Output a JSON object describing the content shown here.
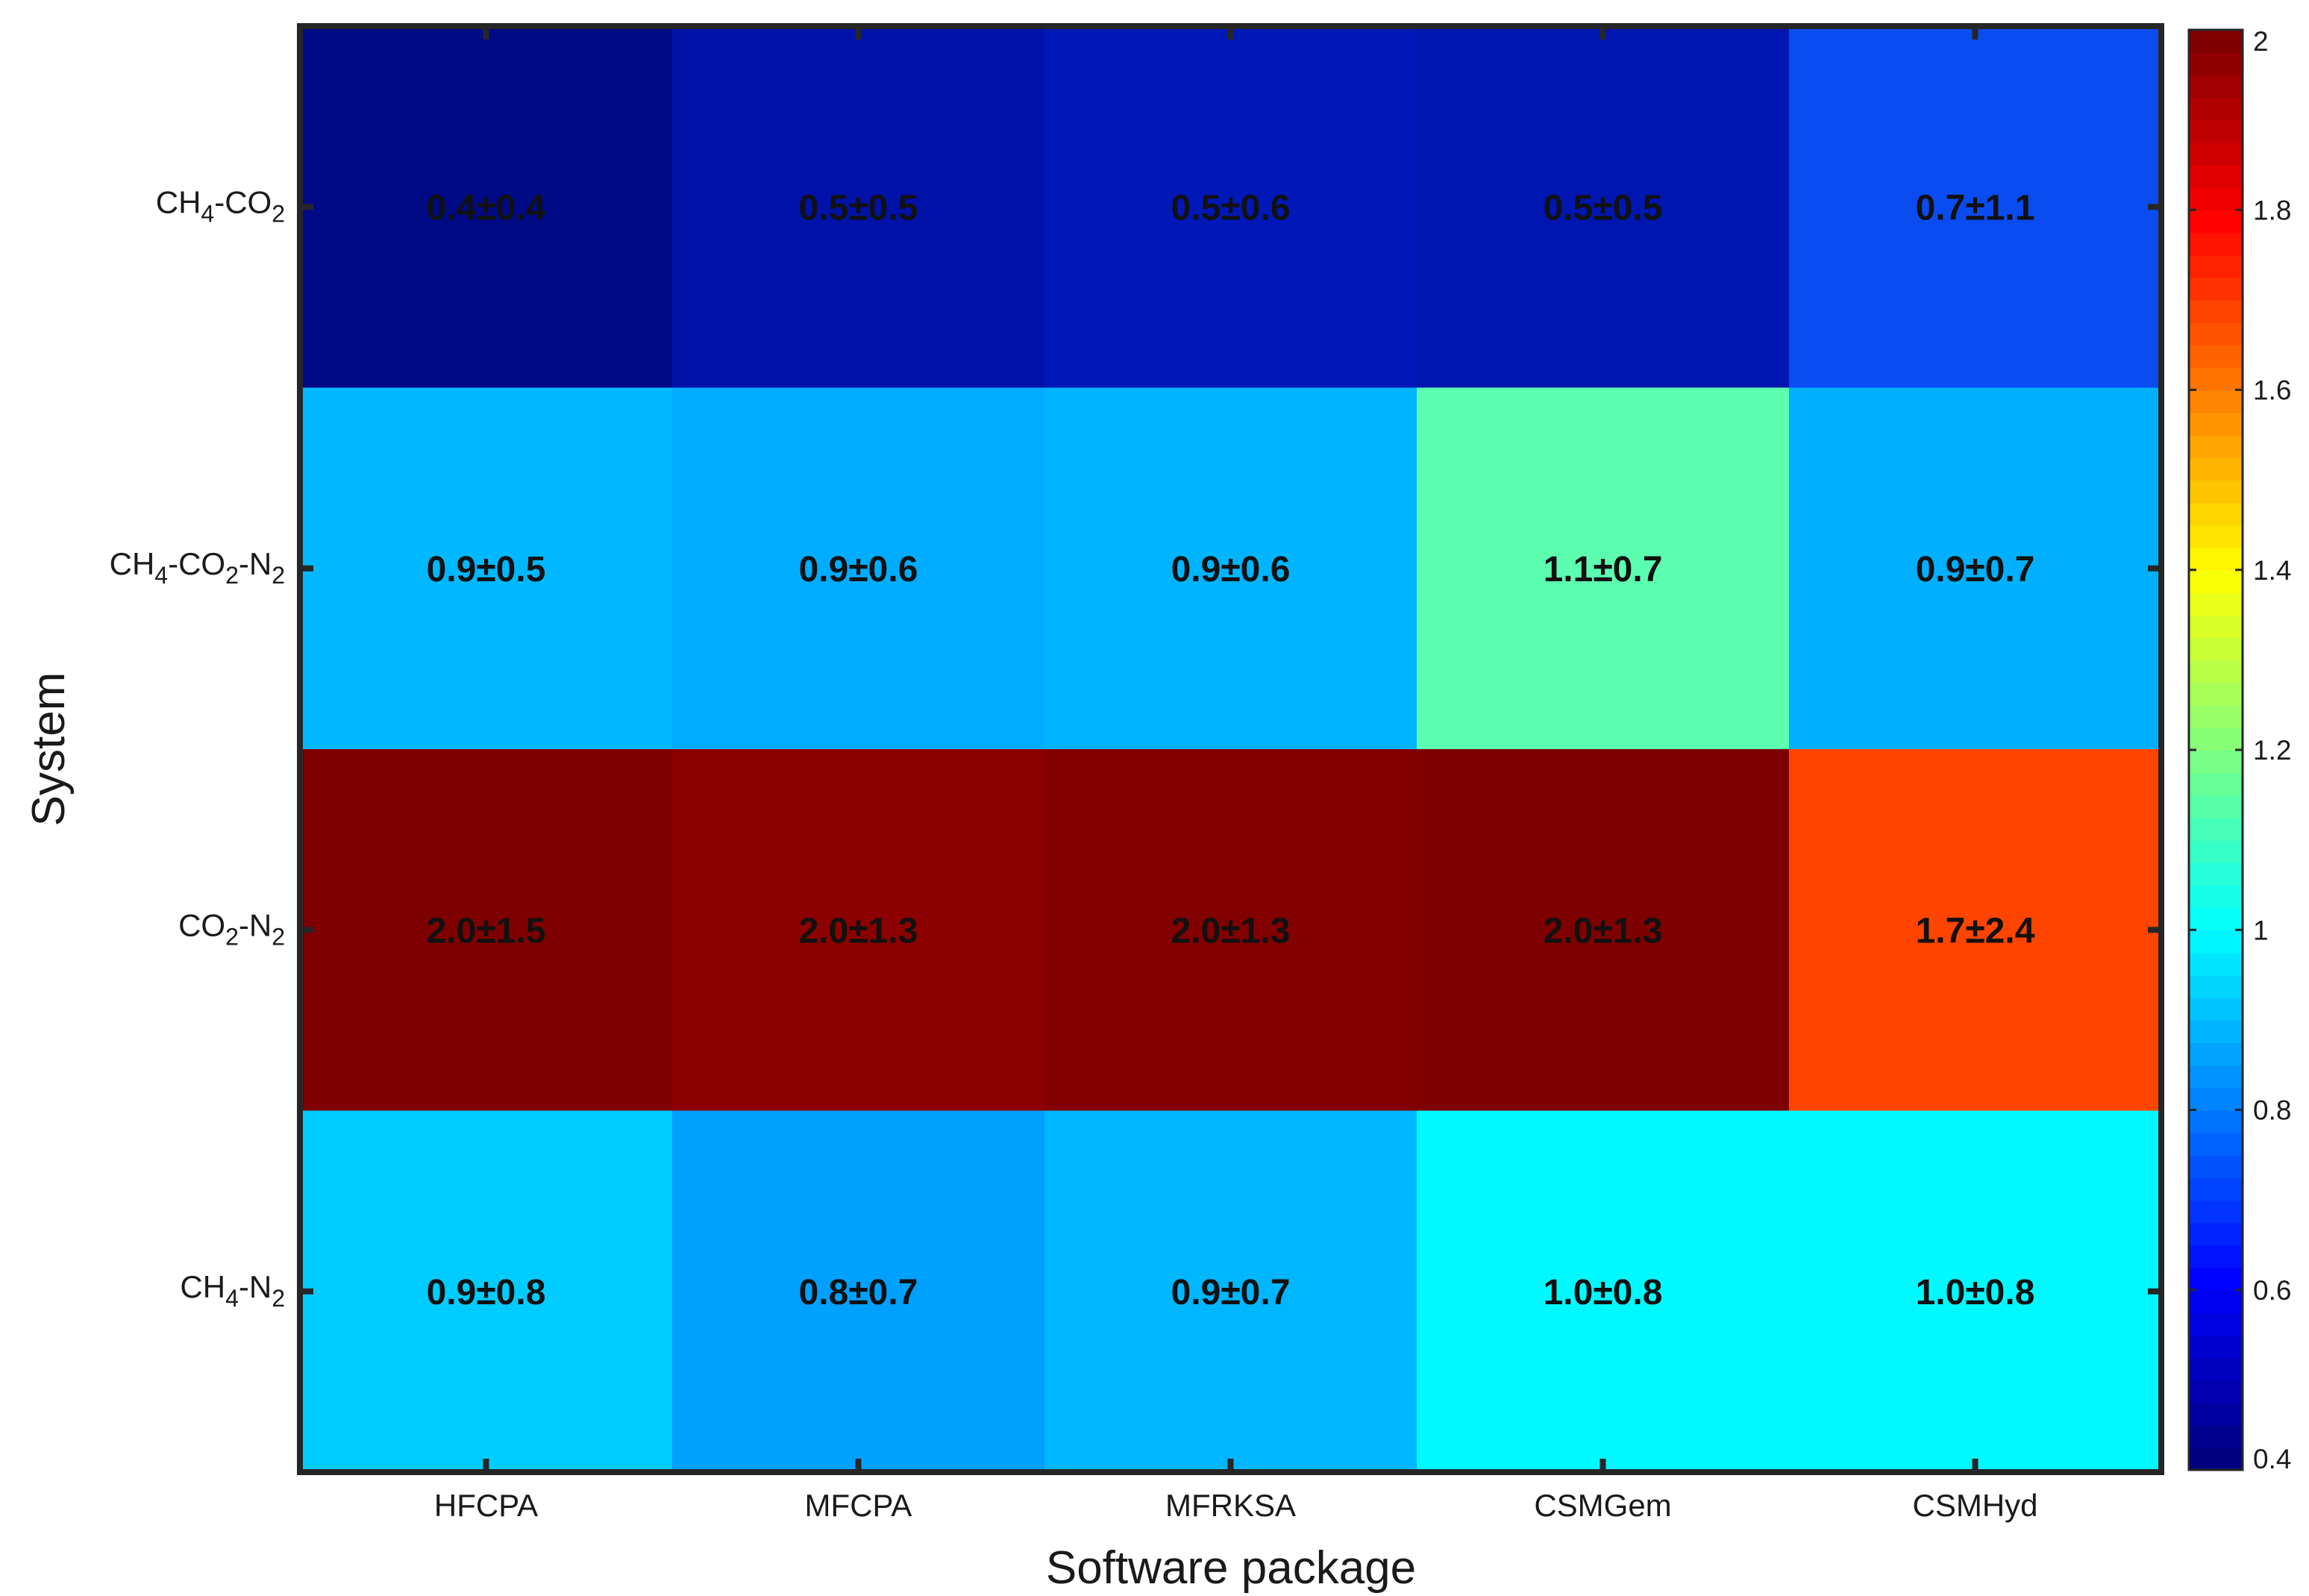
{
  "chart_data": {
    "type": "heatmap",
    "title": "",
    "xlabel": "Software package",
    "ylabel": "System",
    "x_categories": [
      "HFCPA",
      "MFCPA",
      "MFRKSA",
      "CSMGem",
      "CSMHyd"
    ],
    "y_categories": [
      {
        "base": "CH",
        "sub1": "4",
        "mid": "-CO",
        "sub2": "2",
        "tail": "",
        "sub3": ""
      },
      {
        "base": "CH",
        "sub1": "4",
        "mid": "-CO",
        "sub2": "2",
        "tail": "-N",
        "sub3": "2"
      },
      {
        "base": "CO",
        "sub1": "2",
        "mid": "-N",
        "sub2": "2",
        "tail": "",
        "sub3": ""
      },
      {
        "base": "CH",
        "sub1": "4",
        "mid": "-N",
        "sub2": "2",
        "tail": "",
        "sub3": ""
      }
    ],
    "values": [
      [
        0.4,
        0.5,
        0.5,
        0.5,
        0.7
      ],
      [
        0.9,
        0.9,
        0.9,
        1.1,
        0.9
      ],
      [
        2.0,
        2.0,
        2.0,
        2.0,
        1.7
      ],
      [
        0.9,
        0.8,
        0.9,
        1.0,
        1.0
      ]
    ],
    "errors": [
      [
        0.4,
        0.5,
        0.6,
        0.5,
        1.1
      ],
      [
        0.5,
        0.6,
        0.6,
        0.7,
        0.7
      ],
      [
        1.5,
        1.3,
        1.3,
        1.3,
        2.4
      ],
      [
        0.8,
        0.7,
        0.7,
        0.8,
        0.8
      ]
    ],
    "cell_labels": [
      [
        "0.4±0.4",
        "0.5±0.5",
        "0.5±0.6",
        "0.5±0.5",
        "0.7±1.1"
      ],
      [
        "0.9±0.5",
        "0.9±0.6",
        "0.9±0.6",
        "1.1±0.7",
        "0.9±0.7"
      ],
      [
        "2.0±1.5",
        "2.0±1.3",
        "2.0±1.3",
        "2.0±1.3",
        "1.7±2.4"
      ],
      [
        "0.9±0.8",
        "0.8±0.7",
        "0.9±0.7",
        "1.0±0.8",
        "1.0±0.8"
      ]
    ],
    "cell_colors": [
      [
        "#000a85",
        "#0012a8",
        "#0018b8",
        "#0016b0",
        "#0a4cf0"
      ],
      [
        "#00b8ff",
        "#00acff",
        "#00b4ff",
        "#5cffb0",
        "#00b0ff"
      ],
      [
        "#7e0000",
        "#8c0000",
        "#820000",
        "#7e0000",
        "#ff4400"
      ],
      [
        "#00ccff",
        "#00a0ff",
        "#00b6ff",
        "#00f8ff",
        "#00f8ff"
      ]
    ],
    "colormap": "jet",
    "colorbar": {
      "min": 0.4,
      "max": 2,
      "ticks": [
        0.4,
        0.6,
        0.8,
        1,
        1.2,
        1.4,
        1.6,
        1.8,
        2
      ],
      "tick_labels": [
        "0.4",
        "0.6",
        "0.8",
        "1",
        "1.2",
        "1.4",
        "1.6",
        "1.8",
        "2"
      ]
    }
  }
}
